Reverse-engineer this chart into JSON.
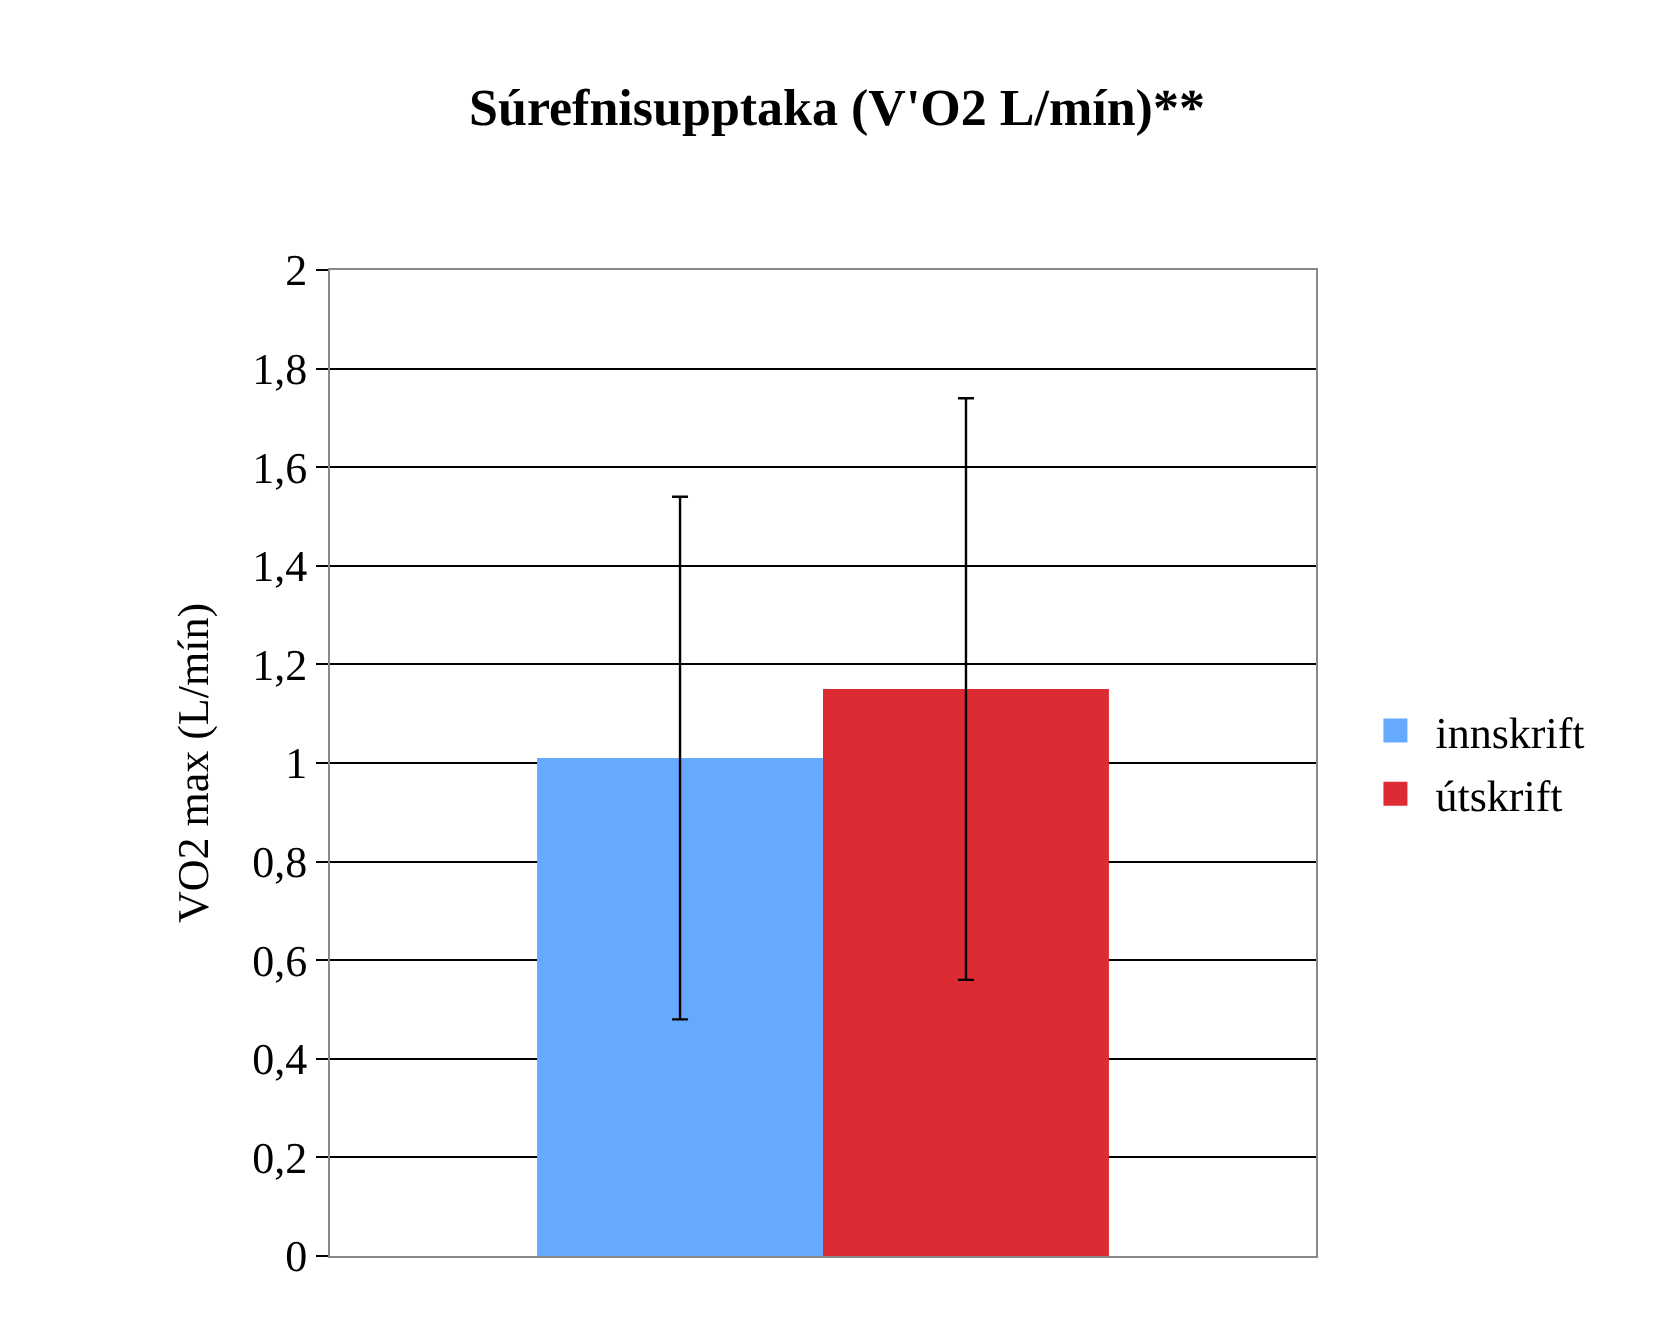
{
  "chart_data": {
    "type": "bar",
    "title": "Súrefnisupptaka (V'O2 L/mín)**",
    "ylabel": "VO2 max (L/mín)",
    "categories": [
      null
    ],
    "series": [
      {
        "name": "innskrift",
        "color": "#66aaff",
        "values": [
          1.01
        ],
        "errors": [
          [
            0.48,
            1.54
          ]
        ]
      },
      {
        "name": "útskrift",
        "color": "#dd2b33",
        "values": [
          1.15
        ],
        "errors": [
          [
            0.56,
            1.74
          ]
        ]
      }
    ],
    "ylim": [
      0,
      2
    ],
    "yticks": [
      0,
      {
        "value": 0.2,
        "label": "0,2"
      },
      {
        "value": 0.4,
        "label": "0,4"
      },
      {
        "value": 0.6,
        "label": "0,6"
      },
      {
        "value": 0.8,
        "label": "0,8"
      },
      1,
      {
        "value": 1.2,
        "label": "1,2"
      },
      {
        "value": 1.4,
        "label": "1,4"
      },
      {
        "value": 1.6,
        "label": "1,6"
      },
      {
        "value": 1.8,
        "label": "1,8"
      },
      2
    ],
    "grid": "y",
    "legend": "right"
  }
}
